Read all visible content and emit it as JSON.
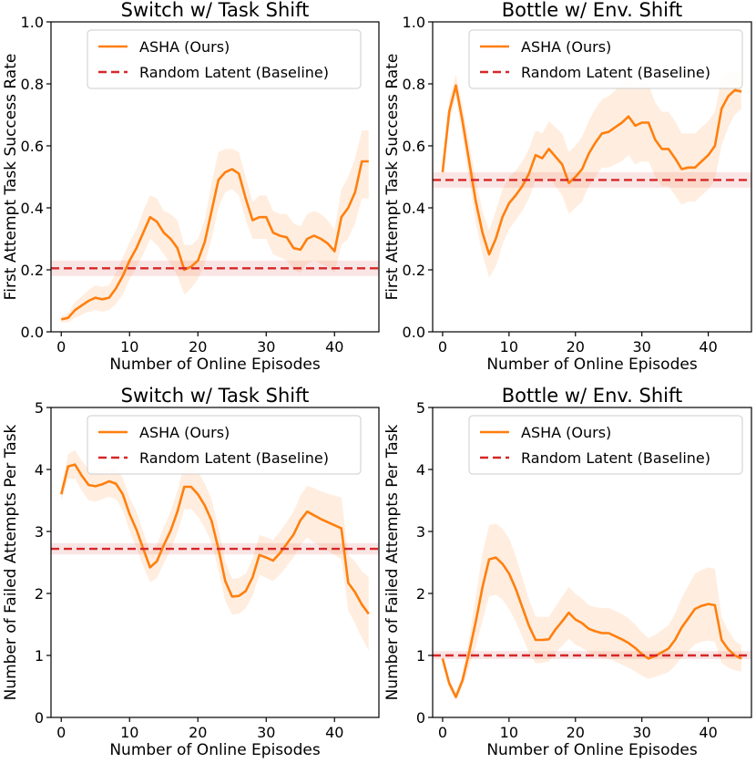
{
  "chart_data": [
    {
      "type": "line",
      "title": "Switch w/ Task Shift",
      "xlabel": "Number of Online Episodes",
      "ylabel": "First Attempt Task Success Rate",
      "xlim": [
        -1.5,
        46.5
      ],
      "ylim": [
        0.0,
        1.0
      ],
      "xticks": [
        0,
        10,
        20,
        30,
        40
      ],
      "xticklabels": [
        "0",
        "10",
        "20",
        "30",
        "40"
      ],
      "yticks": [
        0.0,
        0.2,
        0.4,
        0.6,
        0.8,
        1.0
      ],
      "yticklabels": [
        "0.0",
        "0.2",
        "0.4",
        "0.6",
        "0.8",
        "1.0"
      ],
      "legend": [
        "ASHA (Ours)",
        "Random Latent (Baseline)"
      ],
      "series": [
        {
          "name": "ASHA (Ours)",
          "color": "#ff7f0e",
          "x": [
            0,
            1,
            2,
            3,
            4,
            5,
            6,
            7,
            8,
            9,
            10,
            11,
            12,
            13,
            14,
            15,
            16,
            17,
            18,
            19,
            20,
            21,
            22,
            23,
            24,
            25,
            26,
            27,
            28,
            29,
            30,
            31,
            32,
            33,
            34,
            35,
            36,
            37,
            38,
            39,
            40,
            41,
            42,
            43,
            44,
            45
          ],
          "values": [
            0.04,
            0.045,
            0.07,
            0.085,
            0.1,
            0.11,
            0.105,
            0.11,
            0.14,
            0.18,
            0.23,
            0.27,
            0.32,
            0.37,
            0.355,
            0.32,
            0.3,
            0.27,
            0.2,
            0.21,
            0.23,
            0.29,
            0.39,
            0.49,
            0.515,
            0.525,
            0.51,
            0.43,
            0.36,
            0.37,
            0.37,
            0.32,
            0.31,
            0.305,
            0.27,
            0.265,
            0.3,
            0.31,
            0.3,
            0.285,
            0.26,
            0.37,
            0.4,
            0.45,
            0.55,
            0.55
          ],
          "lower": [
            0.03,
            0.03,
            0.045,
            0.055,
            0.065,
            0.07,
            0.065,
            0.07,
            0.09,
            0.12,
            0.17,
            0.21,
            0.25,
            0.3,
            0.28,
            0.25,
            0.22,
            0.18,
            0.12,
            0.14,
            0.17,
            0.22,
            0.3,
            0.4,
            0.45,
            0.46,
            0.44,
            0.36,
            0.3,
            0.3,
            0.3,
            0.25,
            0.24,
            0.23,
            0.2,
            0.19,
            0.22,
            0.23,
            0.22,
            0.21,
            0.19,
            0.28,
            0.3,
            0.35,
            0.43,
            0.43
          ],
          "upper": [
            0.05,
            0.06,
            0.095,
            0.115,
            0.135,
            0.15,
            0.145,
            0.15,
            0.19,
            0.24,
            0.29,
            0.33,
            0.39,
            0.44,
            0.43,
            0.39,
            0.38,
            0.36,
            0.28,
            0.28,
            0.3,
            0.36,
            0.48,
            0.58,
            0.59,
            0.59,
            0.58,
            0.5,
            0.42,
            0.44,
            0.44,
            0.39,
            0.38,
            0.38,
            0.35,
            0.34,
            0.38,
            0.39,
            0.38,
            0.36,
            0.33,
            0.46,
            0.5,
            0.56,
            0.65,
            0.65
          ]
        },
        {
          "name": "Random Latent (Baseline)",
          "color": "#d62728",
          "dashed": true,
          "value": 0.205,
          "lower": 0.18,
          "upper": 0.23
        }
      ]
    },
    {
      "type": "line",
      "title": "Bottle w/ Env. Shift",
      "xlabel": "Number of Online Episodes",
      "ylabel": "First Attempt Task Success Rate",
      "xlim": [
        -1.5,
        46.5
      ],
      "ylim": [
        0.0,
        1.0
      ],
      "xticks": [
        0,
        10,
        20,
        30,
        40
      ],
      "xticklabels": [
        "0",
        "10",
        "20",
        "30",
        "40"
      ],
      "yticks": [
        0.0,
        0.2,
        0.4,
        0.6,
        0.8,
        1.0
      ],
      "yticklabels": [
        "0.0",
        "0.2",
        "0.4",
        "0.6",
        "0.8",
        "1.0"
      ],
      "legend": [
        "ASHA (Ours)",
        "Random Latent (Baseline)"
      ],
      "series": [
        {
          "name": "ASHA (Ours)",
          "color": "#ff7f0e",
          "x": [
            0,
            1,
            2,
            3,
            4,
            5,
            6,
            7,
            8,
            9,
            10,
            11,
            12,
            13,
            14,
            15,
            16,
            17,
            18,
            19,
            20,
            21,
            22,
            23,
            24,
            25,
            26,
            27,
            28,
            29,
            30,
            31,
            32,
            33,
            34,
            35,
            36,
            37,
            38,
            39,
            40,
            41,
            42,
            43,
            44,
            45
          ],
          "values": [
            0.515,
            0.71,
            0.795,
            0.68,
            0.55,
            0.42,
            0.32,
            0.25,
            0.3,
            0.37,
            0.415,
            0.44,
            0.47,
            0.51,
            0.57,
            0.56,
            0.59,
            0.565,
            0.54,
            0.48,
            0.5,
            0.525,
            0.575,
            0.61,
            0.64,
            0.645,
            0.66,
            0.675,
            0.695,
            0.665,
            0.675,
            0.675,
            0.62,
            0.59,
            0.59,
            0.56,
            0.525,
            0.53,
            0.53,
            0.55,
            0.57,
            0.6,
            0.72,
            0.76,
            0.78,
            0.775
          ],
          "lower": [
            0.49,
            0.67,
            0.76,
            0.63,
            0.49,
            0.35,
            0.25,
            0.175,
            0.21,
            0.28,
            0.33,
            0.36,
            0.39,
            0.43,
            0.49,
            0.48,
            0.5,
            0.47,
            0.44,
            0.38,
            0.4,
            0.42,
            0.47,
            0.5,
            0.53,
            0.53,
            0.54,
            0.55,
            0.57,
            0.54,
            0.55,
            0.55,
            0.5,
            0.47,
            0.47,
            0.44,
            0.41,
            0.42,
            0.42,
            0.44,
            0.46,
            0.49,
            0.6,
            0.66,
            0.7,
            0.72
          ],
          "upper": [
            0.54,
            0.75,
            0.83,
            0.73,
            0.61,
            0.49,
            0.39,
            0.325,
            0.39,
            0.46,
            0.5,
            0.52,
            0.55,
            0.59,
            0.65,
            0.64,
            0.68,
            0.66,
            0.64,
            0.58,
            0.6,
            0.63,
            0.68,
            0.72,
            0.75,
            0.76,
            0.78,
            0.8,
            0.82,
            0.79,
            0.8,
            0.8,
            0.74,
            0.71,
            0.71,
            0.68,
            0.64,
            0.64,
            0.64,
            0.66,
            0.68,
            0.71,
            0.82,
            0.84,
            0.84,
            0.83
          ]
        },
        {
          "name": "Random Latent (Baseline)",
          "color": "#d62728",
          "dashed": true,
          "value": 0.49,
          "lower": 0.465,
          "upper": 0.515
        }
      ]
    },
    {
      "type": "line",
      "title": "Switch w/ Task Shift",
      "xlabel": "Number of Online Episodes",
      "ylabel": "Number of Failed Attempts Per Task",
      "xlim": [
        -1.5,
        46.5
      ],
      "ylim": [
        0,
        5
      ],
      "xticks": [
        0,
        10,
        20,
        30,
        40
      ],
      "xticklabels": [
        "0",
        "10",
        "20",
        "30",
        "40"
      ],
      "yticks": [
        0,
        1,
        2,
        3,
        4,
        5
      ],
      "yticklabels": [
        "0",
        "1",
        "2",
        "3",
        "4",
        "5"
      ],
      "legend": [
        "ASHA (Ours)",
        "Random Latent (Baseline)"
      ],
      "series": [
        {
          "name": "ASHA (Ours)",
          "color": "#ff7f0e",
          "x": [
            0,
            1,
            2,
            3,
            4,
            5,
            6,
            7,
            8,
            9,
            10,
            11,
            12,
            13,
            14,
            15,
            16,
            17,
            18,
            19,
            20,
            21,
            22,
            23,
            24,
            25,
            26,
            27,
            28,
            29,
            30,
            31,
            32,
            33,
            34,
            35,
            36,
            37,
            38,
            39,
            40,
            41,
            42,
            43,
            44,
            45
          ],
          "values": [
            3.6,
            4.05,
            4.08,
            3.9,
            3.75,
            3.73,
            3.76,
            3.81,
            3.77,
            3.6,
            3.28,
            3.03,
            2.72,
            2.42,
            2.52,
            2.78,
            3.01,
            3.32,
            3.72,
            3.72,
            3.6,
            3.42,
            3.17,
            2.72,
            2.2,
            1.95,
            1.96,
            2.04,
            2.26,
            2.62,
            2.58,
            2.53,
            2.65,
            2.8,
            2.95,
            3.18,
            3.32,
            3.26,
            3.2,
            3.15,
            3.1,
            3.05,
            2.17,
            2.02,
            1.82,
            1.67
          ],
          "lower": [
            3.5,
            3.85,
            3.85,
            3.66,
            3.5,
            3.48,
            3.52,
            3.56,
            3.52,
            3.34,
            3.01,
            2.74,
            2.44,
            2.18,
            2.25,
            2.49,
            2.7,
            2.98,
            3.36,
            3.36,
            3.24,
            3.06,
            2.82,
            2.38,
            1.88,
            1.66,
            1.67,
            1.76,
            1.96,
            2.3,
            2.25,
            2.2,
            2.3,
            2.44,
            2.58,
            2.78,
            2.9,
            2.82,
            2.75,
            2.69,
            2.62,
            2.55,
            1.72,
            1.52,
            1.28,
            1.08
          ],
          "upper": [
            3.7,
            4.25,
            4.31,
            4.14,
            4.0,
            3.98,
            4.0,
            4.06,
            4.02,
            3.86,
            3.55,
            3.32,
            3.0,
            2.66,
            2.79,
            3.07,
            3.32,
            3.66,
            4.08,
            4.08,
            3.96,
            3.78,
            3.52,
            3.06,
            2.52,
            2.24,
            2.25,
            2.32,
            2.56,
            2.94,
            2.91,
            2.86,
            3.0,
            3.16,
            3.32,
            3.58,
            3.74,
            3.7,
            3.65,
            3.61,
            3.58,
            3.55,
            2.62,
            2.52,
            2.36,
            2.26
          ]
        },
        {
          "name": "Random Latent (Baseline)",
          "color": "#d62728",
          "dashed": true,
          "value": 2.72,
          "lower": 2.63,
          "upper": 2.81
        }
      ]
    },
    {
      "type": "line",
      "title": "Bottle w/ Env. Shift",
      "xlabel": "Number of Online Episodes",
      "ylabel": "Number of Failed Attempts Per Task",
      "xlim": [
        -1.5,
        46.5
      ],
      "ylim": [
        0,
        5
      ],
      "xticks": [
        0,
        10,
        20,
        30,
        40
      ],
      "xticklabels": [
        "0",
        "10",
        "20",
        "30",
        "40"
      ],
      "yticks": [
        0,
        1,
        2,
        3,
        4,
        5
      ],
      "yticklabels": [
        "0",
        "1",
        "2",
        "3",
        "4",
        "5"
      ],
      "legend": [
        "ASHA (Ours)",
        "Random Latent (Baseline)"
      ],
      "series": [
        {
          "name": "ASHA (Ours)",
          "color": "#ff7f0e",
          "x": [
            0,
            1,
            2,
            3,
            4,
            5,
            6,
            7,
            8,
            9,
            10,
            11,
            12,
            13,
            14,
            15,
            16,
            17,
            18,
            19,
            20,
            21,
            22,
            23,
            24,
            25,
            26,
            27,
            28,
            29,
            30,
            31,
            32,
            33,
            34,
            35,
            36,
            37,
            38,
            39,
            40,
            41,
            42,
            43,
            44,
            45
          ],
          "values": [
            0.95,
            0.55,
            0.33,
            0.6,
            1.05,
            1.55,
            2.1,
            2.55,
            2.58,
            2.48,
            2.32,
            2.08,
            1.78,
            1.48,
            1.25,
            1.25,
            1.26,
            1.42,
            1.55,
            1.69,
            1.58,
            1.52,
            1.43,
            1.39,
            1.36,
            1.36,
            1.31,
            1.26,
            1.2,
            1.12,
            1.02,
            0.95,
            0.99,
            1.05,
            1.11,
            1.25,
            1.45,
            1.6,
            1.75,
            1.8,
            1.83,
            1.81,
            1.25,
            1.1,
            1.0,
            0.95
          ],
          "lower": [
            0.85,
            0.47,
            0.27,
            0.5,
            0.82,
            1.15,
            1.55,
            1.95,
            1.98,
            1.9,
            1.75,
            1.55,
            1.3,
            1.05,
            0.87,
            0.88,
            0.9,
            1.05,
            1.15,
            1.27,
            1.17,
            1.12,
            1.05,
            1.0,
            0.96,
            0.95,
            0.9,
            0.85,
            0.8,
            0.74,
            0.67,
            0.62,
            0.65,
            0.69,
            0.73,
            0.83,
            0.97,
            1.07,
            1.18,
            1.22,
            1.24,
            1.22,
            0.88,
            0.8,
            0.76,
            0.74
          ],
          "upper": [
            1.05,
            0.63,
            0.39,
            0.7,
            1.28,
            1.95,
            2.65,
            3.1,
            3.13,
            3.05,
            2.89,
            2.61,
            2.26,
            1.91,
            1.63,
            1.62,
            1.62,
            1.79,
            1.95,
            2.11,
            1.99,
            1.92,
            1.81,
            1.78,
            1.76,
            1.77,
            1.72,
            1.67,
            1.6,
            1.5,
            1.37,
            1.28,
            1.33,
            1.41,
            1.49,
            1.67,
            1.93,
            2.13,
            2.32,
            2.38,
            2.42,
            2.4,
            1.62,
            1.4,
            1.24,
            1.16
          ]
        },
        {
          "name": "Random Latent (Baseline)",
          "color": "#d62728",
          "dashed": true,
          "value": 1.0,
          "lower": 0.94,
          "upper": 1.07
        }
      ]
    }
  ]
}
